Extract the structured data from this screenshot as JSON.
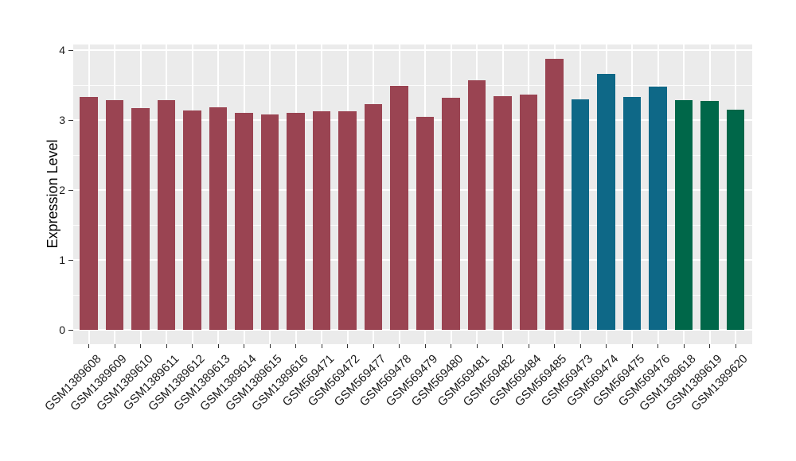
{
  "chart_data": {
    "type": "bar",
    "title": "",
    "xlabel": "",
    "ylabel": "Expression Level",
    "ylim": [
      0,
      4
    ],
    "yticks": [
      "0",
      "1",
      "2",
      "3",
      "4"
    ],
    "ytick_values": [
      0,
      1,
      2,
      3,
      4
    ],
    "yminor_values": [
      0.5,
      1.5,
      2.5,
      3.5
    ],
    "grid": "white major and minor horizontal gridlines plus vertical gridlines at each category center, on gray panel",
    "legend_position": "none",
    "categories": [
      "GSM1389608",
      "GSM1389609",
      "GSM1389610",
      "GSM1389611",
      "GSM1389612",
      "GSM1389613",
      "GSM1389614",
      "GSM1389615",
      "GSM1389616",
      "GSM569471",
      "GSM569472",
      "GSM569477",
      "GSM569478",
      "GSM569479",
      "GSM569480",
      "GSM569481",
      "GSM569482",
      "GSM569484",
      "GSM569485",
      "GSM569473",
      "GSM569474",
      "GSM569475",
      "GSM569476",
      "GSM1389618",
      "GSM1389619",
      "GSM1389620"
    ],
    "values": [
      3.33,
      3.28,
      3.17,
      3.28,
      3.14,
      3.18,
      3.1,
      3.08,
      3.1,
      3.13,
      3.13,
      3.23,
      3.49,
      3.05,
      3.32,
      3.57,
      3.34,
      3.36,
      3.88,
      3.3,
      3.66,
      3.33,
      3.48,
      3.28,
      3.27,
      3.15
    ],
    "bar_groups": [
      "group1",
      "group1",
      "group1",
      "group1",
      "group1",
      "group1",
      "group1",
      "group1",
      "group1",
      "group1",
      "group1",
      "group1",
      "group1",
      "group1",
      "group1",
      "group1",
      "group1",
      "group1",
      "group1",
      "group2",
      "group2",
      "group2",
      "group2",
      "group3",
      "group3",
      "group3"
    ],
    "palette": {
      "group1": "#9A4452",
      "group2": "#0E6887",
      "group3": "#006749"
    },
    "panel_background": "#EBEBEB",
    "gridline_color": "#FFFFFF",
    "outer_background": "#FFFFFF"
  }
}
